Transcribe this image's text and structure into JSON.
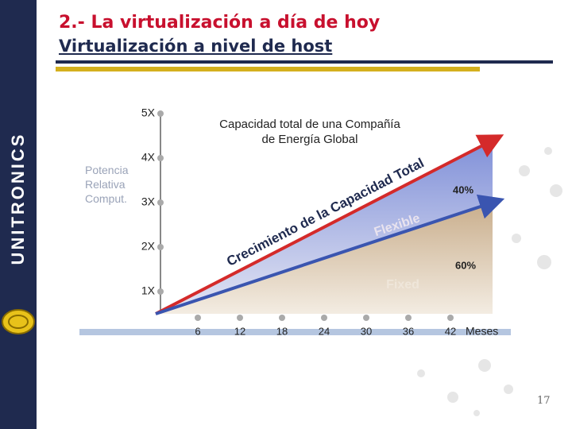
{
  "slide": {
    "brand": "UNITRONICS",
    "title": "2.- La virtualización a día de hoy",
    "subtitle": "Virtualización a nivel de host",
    "page_number": "17"
  },
  "chart_data": {
    "type": "line",
    "y_label": "Potencia Relativa Comput.",
    "x_label": "Meses",
    "x": [
      0,
      48
    ],
    "series": [
      {
        "color": "#d42a2a",
        "values": [
          0.5,
          4.4
        ]
      },
      {
        "color": "#3a55b0",
        "values": [
          0.5,
          3.0
        ]
      }
    ],
    "xlim": [
      0,
      48
    ],
    "xticks": [
      6,
      12,
      18,
      24,
      30,
      36,
      42
    ],
    "ylim": [
      0.5,
      5
    ],
    "yticks": [
      {
        "value": 1,
        "label": "1X"
      },
      {
        "value": 2,
        "label": "2X"
      },
      {
        "value": 3,
        "label": "3X"
      },
      {
        "value": 4,
        "label": "4X"
      },
      {
        "value": 5,
        "label": "5X"
      }
    ],
    "annotations": [
      "Capacidad total de una Compañía de Energía Global",
      "Crecimiento de la Capacidad Total",
      "Flexible",
      "Fixed",
      "40%",
      "60%"
    ]
  }
}
